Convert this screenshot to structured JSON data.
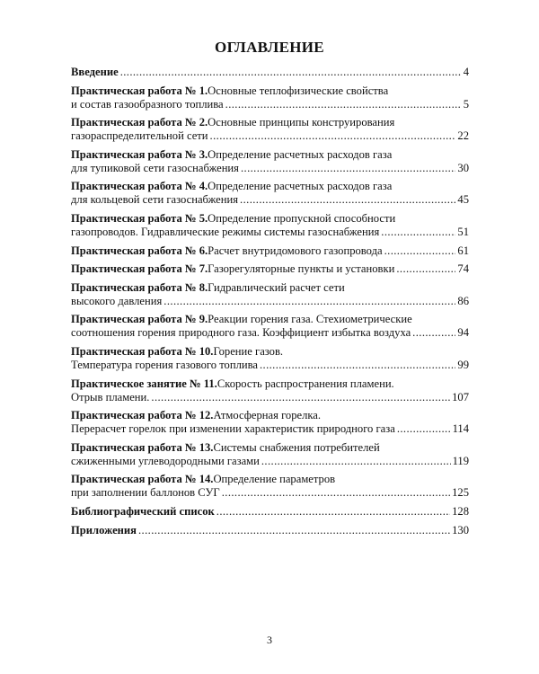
{
  "title": "ОГЛАВЛЕНИЕ",
  "entries": [
    {
      "bold": "Введение",
      "text": "",
      "line2": "",
      "page": "4"
    },
    {
      "bold": "Практическая работа № 1.",
      "text": " Основные теплофизические свойства",
      "line2": "и состав газообразного топлива",
      "page": "5"
    },
    {
      "bold": "Практическая работа № 2.",
      "text": " Основные принципы конструирования",
      "line2": "газораспределительной сети",
      "page": "22"
    },
    {
      "bold": "Практическая работа № 3.",
      "text": " Определение расчетных расходов газа",
      "line2": "для тупиковой сети газоснабжения",
      "page": "30"
    },
    {
      "bold": "Практическая работа № 4.",
      "text": " Определение расчетных расходов газа",
      "line2": "для кольцевой сети газоснабжения",
      "page": "45"
    },
    {
      "bold": "Практическая работа № 5.",
      "text": " Определение пропускной способности",
      "line2": "газопроводов. Гидравлические режимы системы газоснабжения",
      "page": "51"
    },
    {
      "bold": "Практическая работа № 6.",
      "text": " Расчет внутридомового газопровода",
      "line2": "",
      "page": "61"
    },
    {
      "bold": "Практическая работа № 7.",
      "text": " Газорегуляторные пункты и установки",
      "line2": "",
      "page": "74"
    },
    {
      "bold": "Практическая работа № 8.",
      "text": " Гидравлический расчет сети",
      "line2": "высокого давления",
      "page": "86"
    },
    {
      "bold": "Практическая работа № 9.",
      "text": " Реакции горения газа. Стехиометрические",
      "line2": "соотношения горения природного газа. Коэффициент избытка воздуха",
      "page": "94"
    },
    {
      "bold": "Практическая работа № 10.",
      "text": " Горение газов.",
      "line2": "Температура горения газового топлива",
      "page": "99"
    },
    {
      "bold": "Практическое занятие № 11.",
      "text": " Скорость распространения пламени.",
      "line2": "Отрыв пламени.",
      "page": "107"
    },
    {
      "bold": "Практическая работа № 12.",
      "text": " Атмосферная горелка.",
      "line2": "Перерасчет горелок при изменении характеристик природного газа",
      "page": "114"
    },
    {
      "bold": "Практическая работа № 13.",
      "text": " Системы снабжения потребителей",
      "line2": "сжиженными углеводородными газами",
      "page": "119"
    },
    {
      "bold": "Практическая работа № 14.",
      "text": " Определение параметров",
      "line2": "при заполнении баллонов СУГ",
      "page": "125"
    },
    {
      "bold": "Библиографический список",
      "text": "",
      "line2": "",
      "page": "128"
    },
    {
      "bold": "Приложения",
      "text": "",
      "line2": "",
      "page": "130"
    }
  ],
  "page_number": "3"
}
